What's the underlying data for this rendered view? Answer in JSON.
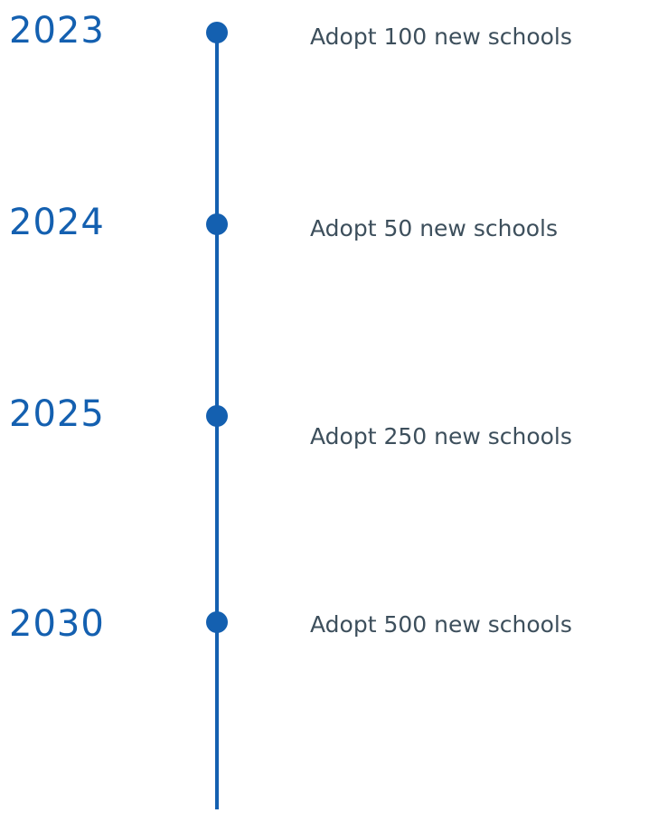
{
  "timeline": {
    "items": [
      {
        "year": "2023",
        "goal": "Adopt 100 new schools"
      },
      {
        "year": "2024",
        "goal": "Adopt 50 new schools"
      },
      {
        "year": "2025",
        "goal": "Adopt 250 new schools"
      },
      {
        "year": "2030",
        "goal": "Adopt 500 new schools"
      }
    ]
  }
}
